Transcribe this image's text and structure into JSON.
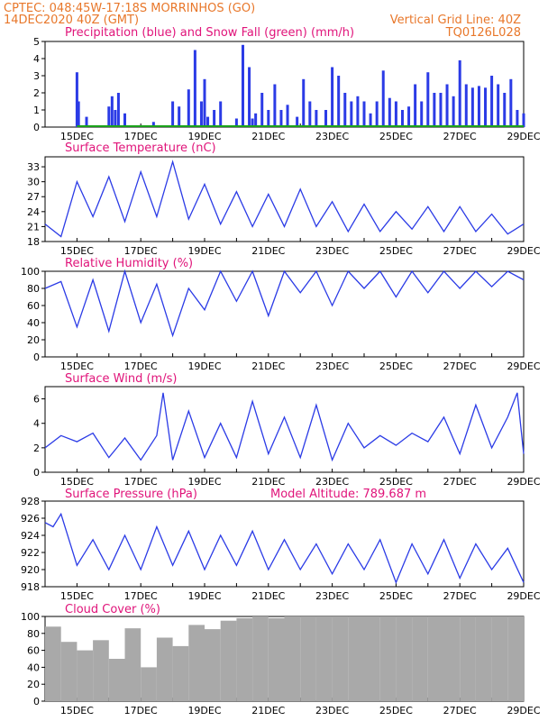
{
  "header": {
    "left_line1": "CPTEC:   048:45W-17:18S   MORRINHOS (GO)",
    "left_line2": "14DEC2020 40Z (GMT)",
    "right_line1": "Vertical Grid Line: 40Z",
    "right_line2": "TQ0126L028"
  },
  "model_altitude": "Model Altitude: 789.687 m",
  "colors": {
    "header": "#e8772a",
    "title": "#e0147a",
    "precip": "#2b3be6",
    "snow": "#1aa31a",
    "line": "#2b3be6",
    "cloud": "#a9a9a9"
  },
  "x_ticks": [
    "15DEC",
    "17DEC",
    "19DEC",
    "21DEC",
    "23DEC",
    "25DEC",
    "27DEC",
    "29DEC"
  ],
  "chart_data": [
    {
      "type": "bar",
      "title": "Precipitation (blue) and Snow Fall (green) (mm/h)",
      "ylim": [
        0,
        5
      ],
      "yticks": [
        0,
        1,
        2,
        3,
        4,
        5
      ],
      "x_range_days": [
        14.0,
        29.0
      ],
      "series": [
        {
          "name": "Precipitation",
          "x": [
            15.0,
            15.05,
            15.3,
            16.0,
            16.1,
            16.2,
            16.3,
            16.5,
            17.4,
            18.0,
            18.2,
            18.5,
            18.7,
            18.9,
            19.0,
            19.1,
            19.3,
            19.5,
            20.0,
            20.2,
            20.4,
            20.5,
            20.6,
            20.8,
            21.0,
            21.2,
            21.4,
            21.6,
            21.9,
            22.1,
            22.3,
            22.5,
            22.8,
            23.0,
            23.2,
            23.4,
            23.6,
            23.8,
            24.0,
            24.2,
            24.4,
            24.6,
            24.8,
            25.0,
            25.2,
            25.4,
            25.6,
            25.8,
            26.0,
            26.2,
            26.4,
            26.6,
            26.8,
            27.0,
            27.2,
            27.4,
            27.6,
            27.8,
            28.0,
            28.2,
            28.4,
            28.6,
            28.8,
            29.0
          ],
          "values": [
            3.2,
            1.5,
            0.6,
            1.2,
            1.8,
            1.0,
            2.0,
            0.8,
            0.3,
            1.5,
            1.2,
            2.2,
            4.5,
            1.5,
            2.8,
            0.6,
            1.0,
            1.5,
            0.5,
            4.8,
            3.5,
            0.5,
            0.8,
            2.0,
            1.0,
            2.5,
            1.0,
            1.3,
            0.6,
            2.8,
            1.5,
            1.0,
            1.0,
            3.5,
            3.0,
            2.0,
            1.5,
            1.8,
            1.5,
            0.8,
            1.5,
            3.3,
            1.7,
            1.5,
            1.0,
            1.2,
            2.5,
            1.5,
            3.2,
            2.0,
            2.0,
            2.5,
            1.8,
            3.9,
            2.5,
            2.3,
            2.4,
            2.3,
            3.0,
            2.5,
            2.0,
            2.8,
            1.0,
            0.8
          ]
        },
        {
          "name": "Snow Fall",
          "x": [
            15.0,
            29.0
          ],
          "values": [
            0.05,
            0.05
          ]
        }
      ]
    },
    {
      "type": "line",
      "title": "Surface Temperature (nC)",
      "ylim": [
        18,
        35
      ],
      "yticks": [
        18,
        21,
        24,
        27,
        30,
        33
      ],
      "x": [
        14.0,
        14.5,
        15.0,
        15.5,
        16.0,
        16.5,
        17.0,
        17.5,
        18.0,
        18.5,
        19.0,
        19.5,
        20.0,
        20.5,
        21.0,
        21.5,
        22.0,
        22.5,
        23.0,
        23.5,
        24.0,
        24.5,
        25.0,
        25.5,
        26.0,
        26.5,
        27.0,
        27.5,
        28.0,
        28.5,
        29.0
      ],
      "values": [
        21.5,
        19.0,
        30.0,
        23.0,
        31.0,
        22.0,
        32.0,
        23.0,
        34.0,
        22.5,
        29.5,
        21.5,
        28.0,
        21.0,
        27.5,
        21.0,
        28.5,
        21.0,
        26.0,
        20.0,
        25.5,
        20.0,
        24.0,
        20.5,
        25.0,
        20.0,
        25.0,
        20.0,
        23.5,
        19.5,
        21.5
      ]
    },
    {
      "type": "line",
      "title": "Relative Humidity (%)",
      "ylim": [
        0,
        100
      ],
      "yticks": [
        0,
        20,
        40,
        60,
        80,
        100
      ],
      "x": [
        14.0,
        14.5,
        15.0,
        15.5,
        16.0,
        16.5,
        17.0,
        17.5,
        18.0,
        18.5,
        19.0,
        19.5,
        20.0,
        20.5,
        21.0,
        21.5,
        22.0,
        22.5,
        23.0,
        23.5,
        24.0,
        24.5,
        25.0,
        25.5,
        26.0,
        26.5,
        27.0,
        27.5,
        28.0,
        28.5,
        29.0
      ],
      "values": [
        80,
        88,
        35,
        90,
        30,
        100,
        40,
        85,
        25,
        80,
        55,
        100,
        65,
        100,
        48,
        100,
        75,
        100,
        60,
        100,
        80,
        100,
        70,
        100,
        75,
        100,
        80,
        100,
        82,
        100,
        90
      ]
    },
    {
      "type": "line",
      "title": "Surface Wind (m/s)",
      "ylim": [
        0,
        7
      ],
      "yticks": [
        0,
        2,
        4,
        6
      ],
      "x": [
        14.0,
        14.5,
        15.0,
        15.5,
        16.0,
        16.5,
        17.0,
        17.5,
        17.7,
        18.0,
        18.5,
        19.0,
        19.5,
        20.0,
        20.5,
        21.0,
        21.5,
        22.0,
        22.5,
        23.0,
        23.5,
        24.0,
        24.5,
        25.0,
        25.5,
        26.0,
        26.5,
        27.0,
        27.5,
        28.0,
        28.5,
        28.8,
        29.0
      ],
      "values": [
        2.0,
        3.0,
        2.5,
        3.2,
        1.2,
        2.8,
        1.0,
        3.0,
        6.5,
        1.0,
        5.0,
        1.2,
        4.0,
        1.2,
        5.8,
        1.5,
        4.5,
        1.2,
        5.5,
        1.0,
        4.0,
        2.0,
        3.0,
        2.2,
        3.2,
        2.5,
        4.5,
        1.5,
        5.5,
        2.0,
        4.5,
        6.5,
        1.5
      ]
    },
    {
      "type": "line",
      "title": "Surface Pressure (hPa)",
      "ylim": [
        918,
        928
      ],
      "yticks": [
        918,
        920,
        922,
        924,
        926,
        928
      ],
      "x": [
        14.0,
        14.25,
        14.5,
        15.0,
        15.5,
        16.0,
        16.5,
        17.0,
        17.5,
        18.0,
        18.5,
        19.0,
        19.5,
        20.0,
        20.5,
        21.0,
        21.5,
        22.0,
        22.5,
        23.0,
        23.5,
        24.0,
        24.5,
        25.0,
        25.5,
        26.0,
        26.5,
        27.0,
        27.5,
        28.0,
        28.5,
        29.0
      ],
      "values": [
        925.5,
        925.0,
        926.5,
        920.5,
        923.5,
        920.0,
        924.0,
        920.0,
        925.0,
        920.5,
        924.5,
        920.0,
        924.0,
        920.5,
        924.5,
        920.0,
        923.5,
        920.0,
        923.0,
        919.5,
        923.0,
        920.0,
        923.5,
        918.5,
        923.0,
        919.5,
        923.5,
        919.0,
        923.0,
        920.0,
        922.5,
        918.5
      ]
    },
    {
      "type": "bar",
      "title": "Cloud Cover (%)",
      "ylim": [
        0,
        100
      ],
      "yticks": [
        0,
        20,
        40,
        60,
        80,
        100
      ],
      "x": [
        14.0,
        14.5,
        15.0,
        15.5,
        16.0,
        16.5,
        17.0,
        17.5,
        18.0,
        18.5,
        19.0,
        19.5,
        20.0,
        20.5,
        21.0,
        21.5,
        22.0,
        22.5,
        23.0,
        23.5,
        24.0,
        24.5,
        25.0,
        25.5,
        26.0,
        26.5,
        27.0,
        27.5,
        28.0,
        28.5,
        29.0
      ],
      "values": [
        88,
        70,
        60,
        72,
        50,
        86,
        40,
        75,
        65,
        90,
        85,
        95,
        98,
        100,
        98,
        100,
        100,
        100,
        100,
        100,
        100,
        100,
        100,
        100,
        100,
        100,
        100,
        100,
        100,
        100,
        100
      ]
    }
  ]
}
